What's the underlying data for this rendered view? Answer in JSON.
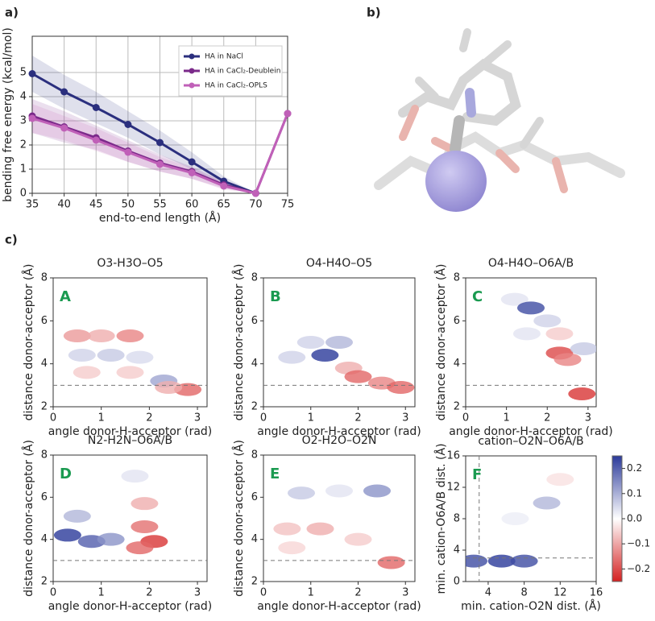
{
  "panel_labels": [
    "a)",
    "b)",
    "c)"
  ],
  "chart_data": [
    {
      "type": "line",
      "x": [
        35,
        40,
        45,
        50,
        55,
        60,
        65,
        70,
        75
      ],
      "xlim": [
        35,
        75
      ],
      "xticks": [
        35,
        40,
        45,
        50,
        55,
        60,
        65,
        70,
        75
      ],
      "ylim": [
        0,
        6.5
      ],
      "yticks": [
        0,
        1,
        2,
        3,
        4,
        5
      ],
      "xlabel": "end-to-end length (Å)",
      "ylabel": "bending free energy (kcal/mol)",
      "grid": true,
      "legend": "upper right",
      "series": [
        {
          "name": "HA in NaCl",
          "color": "#2b2f7e",
          "values": [
            4.95,
            4.2,
            3.55,
            2.85,
            2.1,
            1.3,
            0.5,
            0,
            null
          ],
          "upper": [
            5.7,
            4.9,
            4.2,
            3.4,
            2.6,
            1.7,
            0.7,
            0,
            null
          ],
          "lower": [
            4.2,
            3.5,
            2.9,
            2.3,
            1.6,
            1.0,
            0.3,
            0,
            null
          ]
        },
        {
          "name": "HA in CaCl₂-Deublein",
          "color": "#7b2a8a",
          "values": [
            3.2,
            2.75,
            2.3,
            1.75,
            1.25,
            0.9,
            0.35,
            0,
            3.3
          ],
          "upper": [
            3.9,
            3.4,
            2.8,
            2.2,
            1.6,
            1.1,
            0.5,
            0,
            3.3
          ],
          "lower": [
            2.5,
            2.1,
            1.8,
            1.3,
            0.9,
            0.6,
            0.2,
            0,
            3.3
          ]
        },
        {
          "name": "HA in CaCl₂-OPLS",
          "color": "#c060b8",
          "values": [
            3.1,
            2.7,
            2.2,
            1.7,
            1.2,
            0.85,
            0.3,
            0,
            3.3
          ],
          "upper": [
            3.7,
            3.2,
            2.7,
            2.1,
            1.5,
            1.05,
            0.45,
            0,
            3.3
          ],
          "lower": [
            2.5,
            2.2,
            1.75,
            1.3,
            0.9,
            0.6,
            0.15,
            0,
            3.3
          ]
        }
      ]
    },
    {
      "type": "density",
      "title": "O3-H3O–O5",
      "letter": "A",
      "xlabel": "angle donor-H-acceptor (rad)",
      "ylabel": "distance donor-acceptor (Å)",
      "xlim": [
        0,
        3.2
      ],
      "xticks": [
        0,
        1,
        2,
        3
      ],
      "ylim": [
        2,
        8
      ],
      "yticks": [
        2,
        4,
        6,
        8
      ],
      "hline": 3,
      "x": [
        0.5,
        1.0,
        1.6,
        0.6,
        1.2,
        1.8,
        0.7,
        1.6,
        2.3,
        2.8,
        2.4
      ],
      "y": [
        5.3,
        5.3,
        5.3,
        4.4,
        4.4,
        4.3,
        3.6,
        3.6,
        3.2,
        2.8,
        2.9
      ],
      "values": [
        -0.1,
        -0.08,
        -0.12,
        0.05,
        0.06,
        0.04,
        -0.05,
        -0.05,
        0.1,
        -0.15,
        -0.08
      ]
    },
    {
      "type": "density",
      "title": "O4-H4O–O5",
      "letter": "B",
      "xlabel": "angle donor-H-acceptor (rad)",
      "ylabel": "distance donor-acceptor (Å)",
      "xlim": [
        0,
        3.2
      ],
      "xticks": [
        0,
        1,
        2,
        3
      ],
      "ylim": [
        2,
        8
      ],
      "yticks": [
        2,
        4,
        6,
        8
      ],
      "hline": 3,
      "x": [
        1.0,
        1.6,
        1.3,
        0.6,
        1.8,
        2.0,
        2.5,
        2.9
      ],
      "y": [
        5.0,
        5.0,
        4.4,
        4.3,
        3.8,
        3.4,
        3.1,
        2.9
      ],
      "values": [
        0.05,
        0.08,
        0.22,
        0.05,
        -0.08,
        -0.15,
        -0.12,
        -0.15
      ]
    },
    {
      "type": "density",
      "title": "O4-H4O–O6A/B",
      "letter": "C",
      "xlabel": "angle donor-H-acceptor (rad)",
      "ylabel": "distance donor-acceptor (Å)",
      "xlim": [
        0,
        3.2
      ],
      "xticks": [
        0,
        1,
        2,
        3
      ],
      "ylim": [
        2,
        8
      ],
      "yticks": [
        2,
        4,
        6,
        8
      ],
      "hline": 3,
      "x": [
        1.2,
        1.6,
        2.0,
        2.3,
        2.3,
        2.5,
        2.9,
        2.85,
        1.5
      ],
      "y": [
        7.0,
        6.6,
        6.0,
        5.4,
        4.5,
        4.2,
        4.7,
        2.6,
        5.4
      ],
      "values": [
        0.03,
        0.2,
        0.05,
        -0.05,
        -0.18,
        -0.12,
        0.06,
        -0.2,
        0.03
      ]
    },
    {
      "type": "density",
      "title": "N2-H2N–O6A/B",
      "letter": "D",
      "xlabel": "angle donor-H-acceptor (rad)",
      "ylabel": "distance donor-acceptor (Å)",
      "xlim": [
        0,
        3.2
      ],
      "xticks": [
        0,
        1,
        2,
        3
      ],
      "ylim": [
        2,
        8
      ],
      "yticks": [
        2,
        4,
        6,
        8
      ],
      "hline": 3,
      "x": [
        0.3,
        0.8,
        1.2,
        0.5,
        1.9,
        2.1,
        1.8,
        1.9,
        1.7
      ],
      "y": [
        4.2,
        3.9,
        4.0,
        5.1,
        4.6,
        3.9,
        3.6,
        5.7,
        7.0
      ],
      "values": [
        0.22,
        0.18,
        0.12,
        0.08,
        -0.14,
        -0.2,
        -0.15,
        -0.08,
        0.03
      ]
    },
    {
      "type": "density",
      "title": "O2-H2O–O2N",
      "letter": "E",
      "xlabel": "angle donor-H-acceptor (rad)",
      "ylabel": "distance donor-acceptor (Å)",
      "xlim": [
        0,
        3.2
      ],
      "xticks": [
        0,
        1,
        2,
        3
      ],
      "ylim": [
        2,
        8
      ],
      "yticks": [
        2,
        4,
        6,
        8
      ],
      "hline": 3,
      "x": [
        0.8,
        1.6,
        2.4,
        0.5,
        1.2,
        2.0,
        0.6,
        2.7
      ],
      "y": [
        6.2,
        6.3,
        6.3,
        4.5,
        4.5,
        4.0,
        3.6,
        2.9
      ],
      "values": [
        0.06,
        0.03,
        0.12,
        -0.06,
        -0.08,
        -0.05,
        -0.04,
        -0.15
      ]
    },
    {
      "type": "density",
      "title": "cation–O2N–O6A/B",
      "letter": "F",
      "xlabel": "min. cation-O2N dist. (Å)",
      "ylabel": "min. cation-O6A/B dist. (Å)",
      "xlim": [
        1.5,
        16
      ],
      "xticks": [
        4,
        8,
        12,
        16
      ],
      "ylim": [
        0,
        16
      ],
      "yticks": [
        0,
        4,
        8,
        12,
        16
      ],
      "hline": 3,
      "vline": 3,
      "x": [
        2.4,
        5.5,
        8.0,
        10.5,
        12.0,
        7.0
      ],
      "y": [
        2.6,
        2.6,
        2.6,
        10.0,
        13.0,
        8.0
      ],
      "values": [
        0.2,
        0.22,
        0.2,
        0.08,
        -0.03,
        0.02
      ],
      "colorbar": {
        "lim": [
          -0.25,
          0.25
        ],
        "ticks": [
          0.2,
          0.1,
          {
            "value": 0,
            "label": "0.0"
          },
          {
            "value": -0.1,
            "label": "−0.1"
          },
          {
            "value": -0.2,
            "label": "−0.2"
          }
        ]
      }
    }
  ]
}
